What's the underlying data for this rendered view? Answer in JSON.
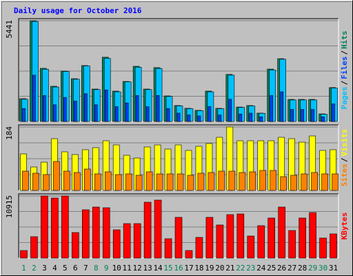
{
  "title": "Daily usage for October 2016",
  "legend_separator": "/",
  "chart_data": [
    {
      "type": "bar",
      "ylim": [
        0,
        5441
      ],
      "yticks": [
        5441
      ],
      "series": [
        {
          "name": "Hits",
          "color": "#00805c",
          "values": [
            1230,
            5441,
            2870,
            1900,
            2720,
            2310,
            3020,
            1750,
            3470,
            1640,
            2160,
            2980,
            1750,
            2910,
            1380,
            860,
            710,
            600,
            1640,
            710,
            2540,
            780,
            860,
            450,
            2830,
            3390,
            1190,
            1190,
            1190,
            410,
            1830
          ]
        },
        {
          "name": "Files",
          "color": "#0040ff",
          "values": [
            700,
            2500,
            1400,
            900,
            1300,
            1100,
            1500,
            900,
            1700,
            800,
            1000,
            1400,
            800,
            1400,
            700,
            450,
            350,
            300,
            800,
            350,
            1200,
            400,
            450,
            250,
            1400,
            1600,
            650,
            650,
            650,
            250,
            950
          ]
        },
        {
          "name": "Pages",
          "color": "#00c0ff",
          "values": [
            1200,
            5400,
            2820,
            1860,
            2700,
            2280,
            3000,
            1720,
            3410,
            1600,
            2140,
            2930,
            1720,
            2860,
            1350,
            840,
            690,
            580,
            1600,
            690,
            2500,
            760,
            840,
            440,
            2780,
            3360,
            1160,
            1160,
            1160,
            390,
            1800
          ]
        }
      ]
    },
    {
      "type": "bar",
      "ylim": [
        0,
        184
      ],
      "yticks": [
        184
      ],
      "series": [
        {
          "name": "Visits",
          "color": "#ffff00",
          "values": [
            106,
            68,
            82,
            150,
            112,
            104,
            118,
            124,
            144,
            132,
            102,
            94,
            126,
            132,
            120,
            132,
            116,
            128,
            136,
            154,
            184,
            144,
            144,
            144,
            144,
            154,
            150,
            140,
            158,
            116,
            118
          ]
        },
        {
          "name": "Sites",
          "color": "#ff8000",
          "values": [
            56,
            50,
            46,
            84,
            56,
            52,
            62,
            48,
            54,
            46,
            48,
            44,
            54,
            48,
            48,
            48,
            44,
            50,
            52,
            56,
            56,
            52,
            54,
            58,
            58,
            40,
            44,
            48,
            52,
            48,
            48
          ]
        }
      ]
    },
    {
      "type": "bar",
      "ylim": [
        0,
        10915
      ],
      "yticks": [
        10915
      ],
      "categories": [
        "1",
        "2",
        "3",
        "4",
        "5",
        "6",
        "7",
        "8",
        "9",
        "10",
        "11",
        "12",
        "13",
        "14",
        "15",
        "16",
        "17",
        "18",
        "19",
        "20",
        "21",
        "22",
        "23",
        "24",
        "25",
        "26",
        "27",
        "28",
        "29",
        "30",
        "31"
      ],
      "category_colors": [
        "#00805c",
        "#00805c",
        "#000000",
        "#000000",
        "#000000",
        "#000000",
        "#000000",
        "#00805c",
        "#00805c",
        "#000000",
        "#000000",
        "#000000",
        "#000000",
        "#000000",
        "#00805c",
        "#00805c",
        "#000000",
        "#000000",
        "#000000",
        "#000000",
        "#000000",
        "#00805c",
        "#00805c",
        "#000000",
        "#000000",
        "#000000",
        "#000000",
        "#000000",
        "#00805c",
        "#00805c",
        "#000000"
      ],
      "series": [
        {
          "name": "KBytes",
          "color": "#ff0000",
          "values": [
            1330,
            3760,
            10915,
            10550,
            10915,
            4490,
            8490,
            8970,
            8850,
            4970,
            6060,
            6060,
            9820,
            10190,
            3400,
            7160,
            1330,
            3640,
            7160,
            5820,
            7640,
            7760,
            3880,
            5700,
            7040,
            8970,
            4850,
            7040,
            8000,
            3520,
            4250
          ]
        }
      ]
    }
  ]
}
